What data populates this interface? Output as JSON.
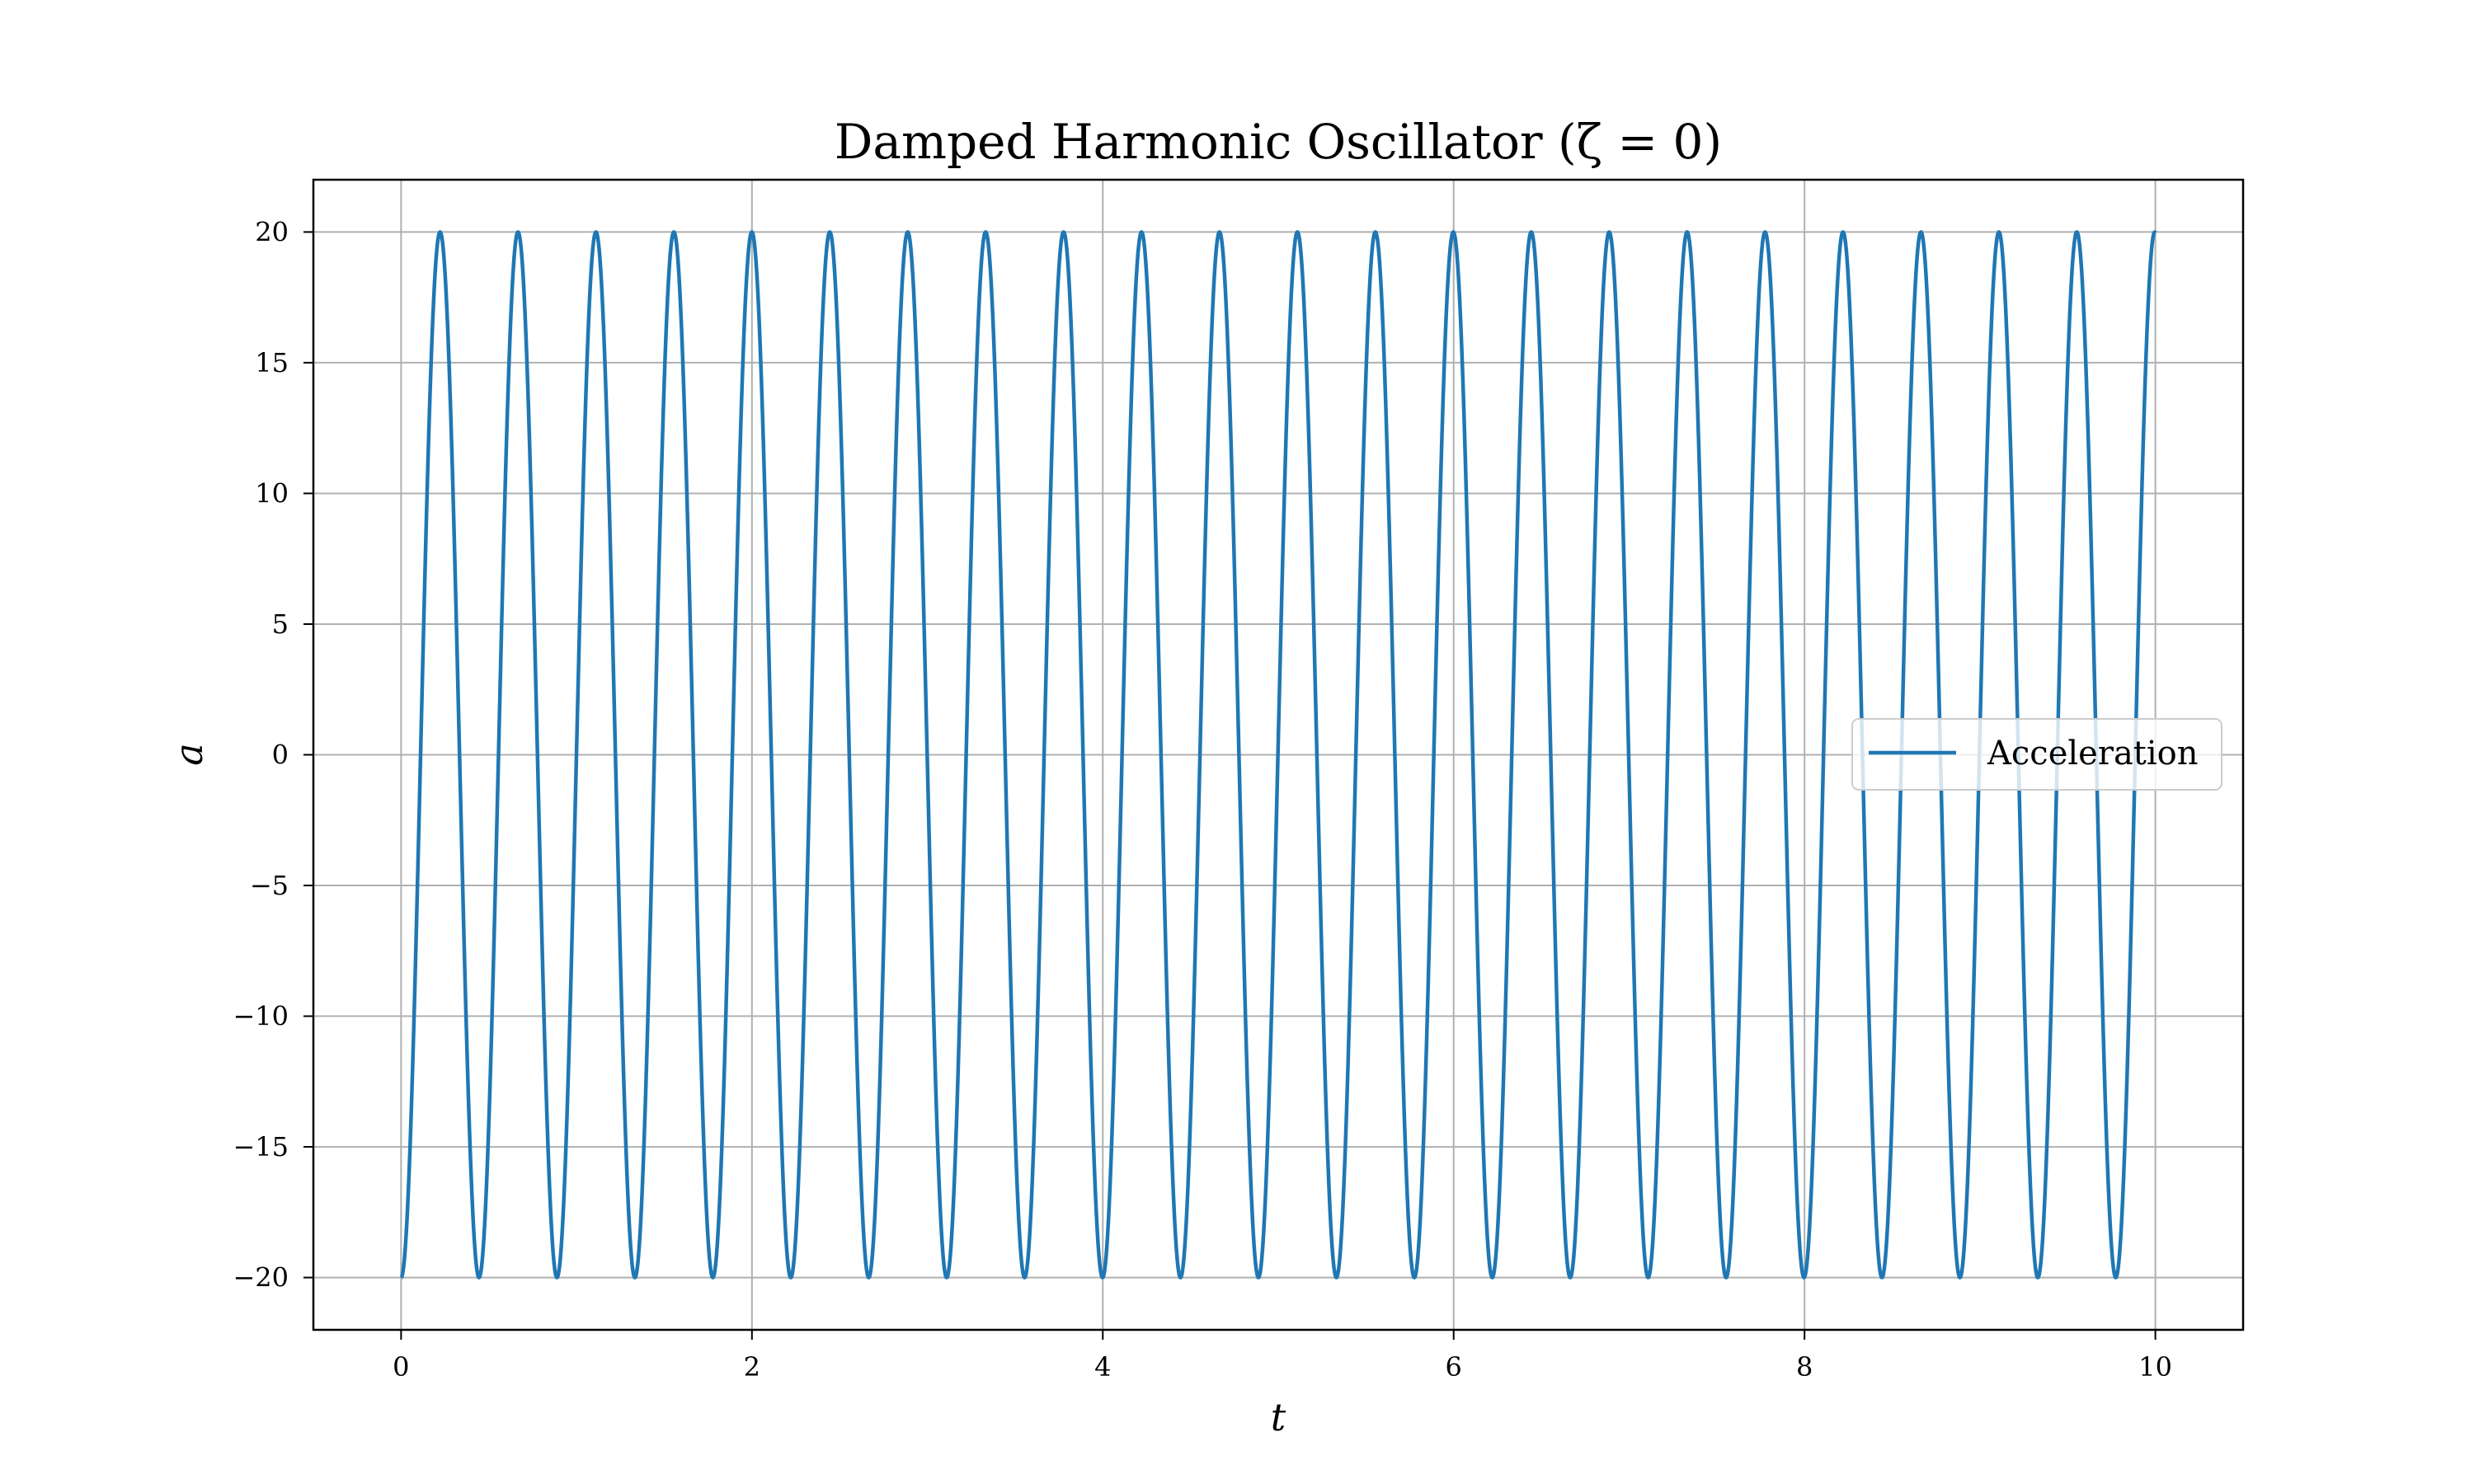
{
  "chart_data": {
    "type": "line",
    "title": "Damped Harmonic Oscillator (ζ = 0)",
    "xlabel": "t",
    "ylabel": "a",
    "xlim": [
      -0.5,
      10.5
    ],
    "ylim": [
      -22,
      22
    ],
    "xticks": [
      0,
      2,
      4,
      6,
      8,
      10
    ],
    "xtick_labels": [
      "0",
      "2",
      "4",
      "6",
      "8",
      "10"
    ],
    "yticks": [
      -20,
      -15,
      -10,
      -5,
      0,
      5,
      10,
      15,
      20
    ],
    "ytick_labels": [
      "−20",
      "−15",
      "−10",
      "−5",
      "0",
      "5",
      "10",
      "15",
      "20"
    ],
    "grid": true,
    "legend_position": "center-right",
    "series": [
      {
        "name": "Acceleration",
        "color": "#1f77b4",
        "function": "-20·cos(ω·t)",
        "amplitude": 20,
        "omega": 14.1421,
        "t_range": [
          0,
          10
        ]
      }
    ]
  }
}
